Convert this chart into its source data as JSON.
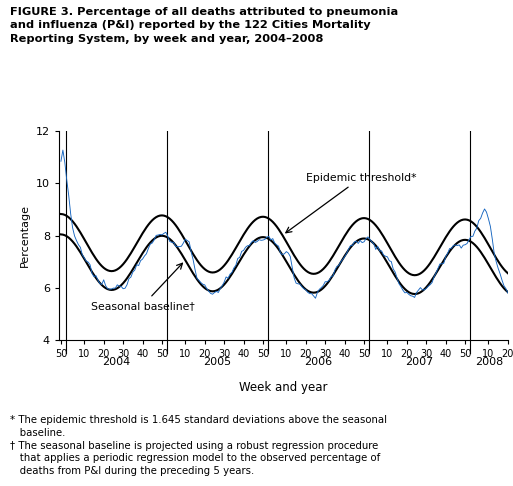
{
  "title": "FIGURE 3. Percentage of all deaths attributed to pneumonia\nand influenza (P&I) reported by the 122 Cities Mortality\nReporting System, by week and year, 2004–2008",
  "ylabel": "Percentage",
  "xlabel": "Week and year",
  "ylim": [
    4,
    12
  ],
  "yticks": [
    4,
    6,
    8,
    10,
    12
  ],
  "line_color_actual": "#1565c0",
  "line_color_smooth": "#000000",
  "annotation_epidemic": "Epidemic threshold*",
  "annotation_seasonal": "Seasonal baseline†",
  "footnote": "* The epidemic threshold is 1.645 standard deviations above the seasonal\n   baseline.\n† The seasonal baseline is projected using a robust regression procedure\n   that applies a periodic regression model to the observed percentage of\n   deaths from P&I during the preceding 5 years."
}
